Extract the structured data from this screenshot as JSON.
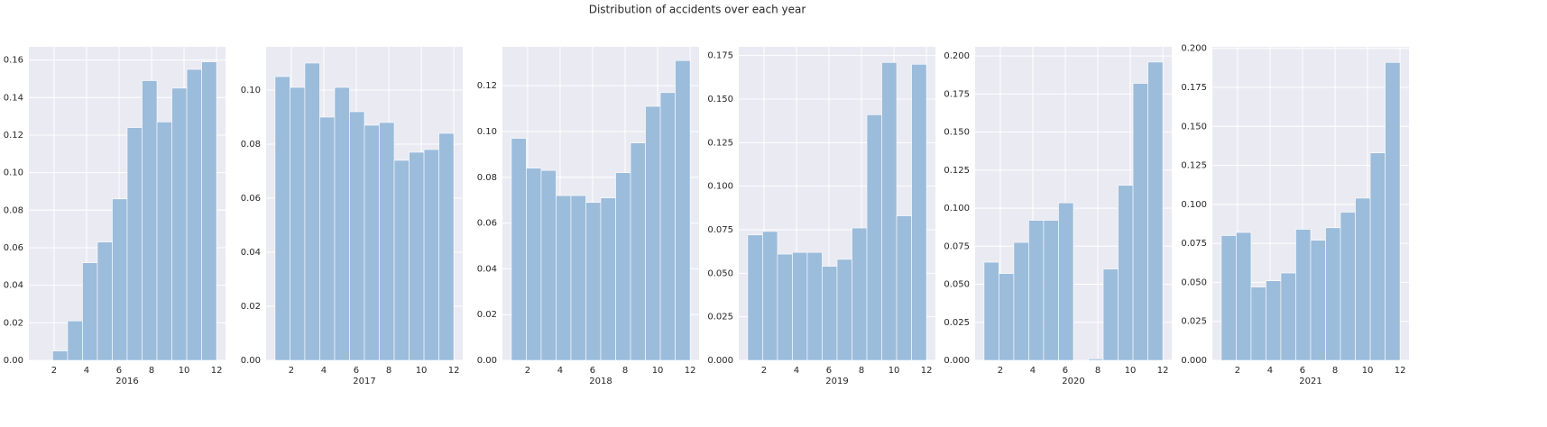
{
  "title": "Distribution of accidents over each year",
  "chart_data": [
    {
      "type": "histogram",
      "xlabel": "2016",
      "color": "#9bbcdb",
      "grid": true,
      "bins": [
        1,
        1.9167,
        2.8333,
        3.75,
        4.6667,
        5.5833,
        6.5,
        7.4167,
        8.3333,
        9.25,
        10.1667,
        11.0833,
        12
      ],
      "values": [
        0,
        0.005,
        0.021,
        0.052,
        0.063,
        0.086,
        0.124,
        0.149,
        0.127,
        0.145,
        0.155,
        0.159
      ],
      "xlim": [
        0.45,
        12.55
      ],
      "xticks": [
        2,
        4,
        6,
        8,
        10,
        12
      ],
      "ylim": [
        0,
        0.167
      ],
      "yticks": [
        {
          "value": 0,
          "label": "0.00"
        },
        {
          "value": 0.02,
          "label": "0.02"
        },
        {
          "value": 0.04,
          "label": "0.04"
        },
        {
          "value": 0.06,
          "label": "0.06"
        },
        {
          "value": 0.08,
          "label": "0.08"
        },
        {
          "value": 0.1,
          "label": "0.10"
        },
        {
          "value": 0.12,
          "label": "0.12"
        },
        {
          "value": 0.14,
          "label": "0.14"
        },
        {
          "value": 0.16,
          "label": "0.16"
        }
      ]
    },
    {
      "type": "histogram",
      "xlabel": "2017",
      "color": "#9bbcdb",
      "grid": true,
      "bins": [
        1,
        1.9167,
        2.8333,
        3.75,
        4.6667,
        5.5833,
        6.5,
        7.4167,
        8.3333,
        9.25,
        10.1667,
        11.0833,
        12
      ],
      "values": [
        0.105,
        0.101,
        0.11,
        0.09,
        0.101,
        0.092,
        0.087,
        0.088,
        0.074,
        0.077,
        0.078,
        0.084
      ],
      "xlim": [
        0.45,
        12.55
      ],
      "xticks": [
        2,
        4,
        6,
        8,
        10,
        12
      ],
      "ylim": [
        0,
        0.116
      ],
      "yticks": [
        {
          "value": 0,
          "label": "0.00"
        },
        {
          "value": 0.02,
          "label": "0.02"
        },
        {
          "value": 0.04,
          "label": "0.04"
        },
        {
          "value": 0.06,
          "label": "0.06"
        },
        {
          "value": 0.08,
          "label": "0.08"
        },
        {
          "value": 0.1,
          "label": "0.10"
        }
      ]
    },
    {
      "type": "histogram",
      "xlabel": "2018",
      "color": "#9bbcdb",
      "grid": true,
      "bins": [
        1,
        1.9167,
        2.8333,
        3.75,
        4.6667,
        5.5833,
        6.5,
        7.4167,
        8.3333,
        9.25,
        10.1667,
        11.0833,
        12
      ],
      "values": [
        0.097,
        0.084,
        0.083,
        0.072,
        0.072,
        0.069,
        0.071,
        0.082,
        0.095,
        0.111,
        0.117,
        0.131
      ],
      "xlim": [
        0.45,
        12.55
      ],
      "xticks": [
        2,
        4,
        6,
        8,
        10,
        12
      ],
      "ylim": [
        0,
        0.137
      ],
      "yticks": [
        {
          "value": 0,
          "label": "0.00"
        },
        {
          "value": 0.02,
          "label": "0.02"
        },
        {
          "value": 0.04,
          "label": "0.04"
        },
        {
          "value": 0.06,
          "label": "0.06"
        },
        {
          "value": 0.08,
          "label": "0.08"
        },
        {
          "value": 0.1,
          "label": "0.10"
        },
        {
          "value": 0.12,
          "label": "0.12"
        }
      ]
    },
    {
      "type": "histogram",
      "xlabel": "2019",
      "color": "#9bbcdb",
      "grid": true,
      "bins": [
        1,
        1.9167,
        2.8333,
        3.75,
        4.6667,
        5.5833,
        6.5,
        7.4167,
        8.3333,
        9.25,
        10.1667,
        11.0833,
        12
      ],
      "values": [
        0.072,
        0.074,
        0.061,
        0.062,
        0.062,
        0.054,
        0.058,
        0.076,
        0.141,
        0.171,
        0.083,
        0.17
      ],
      "xlim": [
        0.45,
        12.55
      ],
      "xticks": [
        2,
        4,
        6,
        8,
        10,
        12
      ],
      "ylim": [
        0,
        0.18
      ],
      "yticks": [
        {
          "value": 0,
          "label": "0.000"
        },
        {
          "value": 0.025,
          "label": "0.025"
        },
        {
          "value": 0.05,
          "label": "0.050"
        },
        {
          "value": 0.075,
          "label": "0.075"
        },
        {
          "value": 0.1,
          "label": "0.100"
        },
        {
          "value": 0.125,
          "label": "0.125"
        },
        {
          "value": 0.15,
          "label": "0.150"
        },
        {
          "value": 0.175,
          "label": "0.175"
        }
      ]
    },
    {
      "type": "histogram",
      "xlabel": "2020",
      "color": "#9bbcdb",
      "grid": true,
      "bins": [
        1,
        1.9167,
        2.8333,
        3.75,
        4.6667,
        5.5833,
        6.5,
        7.4167,
        8.3333,
        9.25,
        10.1667,
        11.0833,
        12
      ],
      "values": [
        0.0645,
        0.057,
        0.0775,
        0.092,
        0.092,
        0.1035,
        0,
        0.001,
        0.06,
        0.115,
        0.182,
        0.196
      ],
      "xlim": [
        0.45,
        12.55
      ],
      "xticks": [
        2,
        4,
        6,
        8,
        10,
        12
      ],
      "ylim": [
        0,
        0.206
      ],
      "yticks": [
        {
          "value": 0,
          "label": "0.000"
        },
        {
          "value": 0.025,
          "label": "0.025"
        },
        {
          "value": 0.05,
          "label": "0.050"
        },
        {
          "value": 0.075,
          "label": "0.075"
        },
        {
          "value": 0.1,
          "label": "0.100"
        },
        {
          "value": 0.125,
          "label": "0.125"
        },
        {
          "value": 0.15,
          "label": "0.150"
        },
        {
          "value": 0.175,
          "label": "0.175"
        },
        {
          "value": 0.2,
          "label": "0.200"
        }
      ]
    },
    {
      "type": "histogram",
      "xlabel": "2021",
      "color": "#9bbcdb",
      "grid": true,
      "bins": [
        1,
        1.9167,
        2.8333,
        3.75,
        4.6667,
        5.5833,
        6.5,
        7.4167,
        8.3333,
        9.25,
        10.1667,
        11.0833,
        12
      ],
      "values": [
        0.08,
        0.082,
        0.047,
        0.051,
        0.056,
        0.084,
        0.077,
        0.085,
        0.095,
        0.104,
        0.133,
        0.191
      ],
      "xlim": [
        0.45,
        12.55
      ],
      "xticks": [
        2,
        4,
        6,
        8,
        10,
        12
      ],
      "ylim": [
        0,
        0.201
      ],
      "yticks": [
        {
          "value": 0,
          "label": "0.000"
        },
        {
          "value": 0.025,
          "label": "0.025"
        },
        {
          "value": 0.05,
          "label": "0.050"
        },
        {
          "value": 0.075,
          "label": "0.075"
        },
        {
          "value": 0.1,
          "label": "0.100"
        },
        {
          "value": 0.125,
          "label": "0.125"
        },
        {
          "value": 0.15,
          "label": "0.150"
        },
        {
          "value": 0.175,
          "label": "0.175"
        },
        {
          "value": 0.2,
          "label": "0.200"
        }
      ]
    }
  ]
}
